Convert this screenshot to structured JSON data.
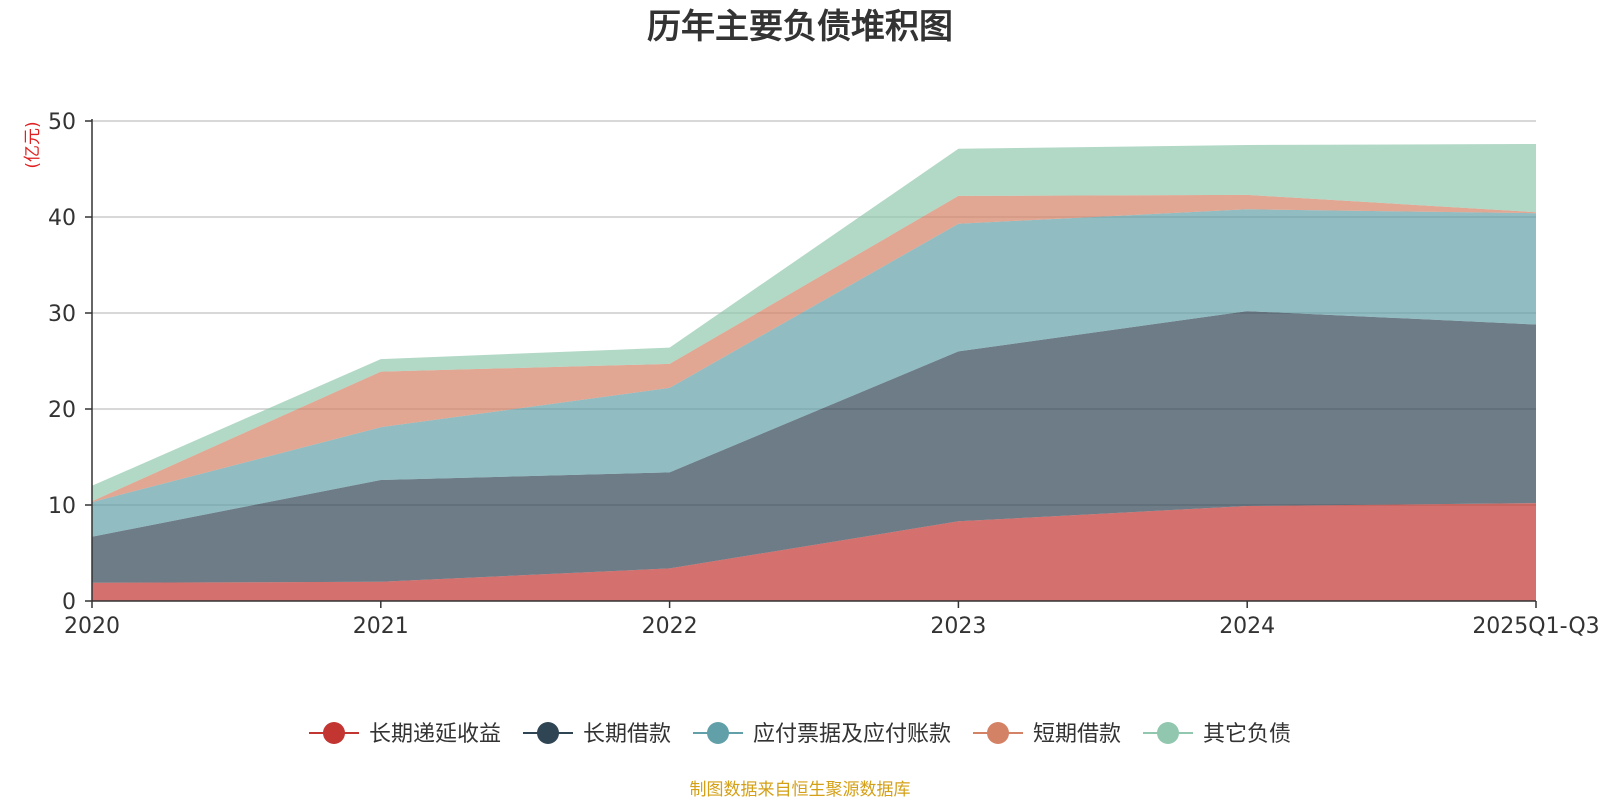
{
  "chart_data": {
    "type": "area",
    "stacked": true,
    "title": "历年主要负债堆积图",
    "ylabel": "(亿元)",
    "xlabel": "",
    "categories": [
      "2020",
      "2021",
      "2022",
      "2023",
      "2024",
      "2025Q1-Q3"
    ],
    "ylim": [
      0,
      50
    ],
    "yticks": [
      0,
      10,
      20,
      30,
      40,
      50
    ],
    "grid": true,
    "legend_position": "bottom",
    "series": [
      {
        "name": "长期递延收益",
        "color": "#c23531",
        "values": [
          1.9,
          2.0,
          3.4,
          8.3,
          9.9,
          10.2
        ]
      },
      {
        "name": "长期借款",
        "color": "#2f4554",
        "values": [
          4.8,
          10.6,
          10.0,
          17.7,
          20.3,
          18.6
        ]
      },
      {
        "name": "应付票据及应付账款",
        "color": "#61a0a8",
        "values": [
          3.6,
          5.5,
          8.8,
          13.3,
          10.6,
          11.6
        ]
      },
      {
        "name": "短期借款",
        "color": "#d48265",
        "values": [
          0.1,
          5.8,
          2.5,
          2.9,
          1.5,
          0.1
        ]
      },
      {
        "name": "其它负债",
        "color": "#91c7ae",
        "values": [
          1.6,
          1.3,
          1.7,
          4.9,
          5.2,
          7.1
        ]
      }
    ],
    "source": "制图数据来自恒生聚源数据库"
  }
}
